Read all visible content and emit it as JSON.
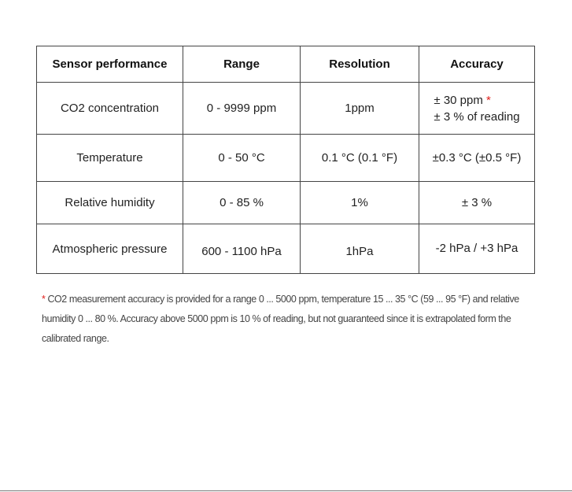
{
  "table": {
    "headers": [
      "Sensor performance",
      "Range",
      "Resolution",
      "Accuracy"
    ],
    "rows": [
      {
        "parameter": "CO2 concentration",
        "range": "0 - 9999 ppm",
        "resolution": "1ppm",
        "accuracy_line1": "± 30 ppm",
        "accuracy_marker": "*",
        "accuracy_line2": "± 3 % of reading"
      },
      {
        "parameter": "Temperature",
        "range": "0 - 50 °C",
        "resolution": "0.1 °C (0.1 °F)",
        "accuracy": "±0.3 °C (±0.5 °F)"
      },
      {
        "parameter": "Relative humidity",
        "range": "0 - 85 %",
        "resolution": "1%",
        "accuracy": "± 3 %"
      },
      {
        "parameter": "Atmospheric pressure",
        "range": "600 - 1100 hPa",
        "resolution": "1hPa",
        "accuracy": "-2 hPa / +3 hPa"
      }
    ]
  },
  "footnote": {
    "marker": "*",
    "text": "CO2 measurement accuracy is provided for a range 0 ... 5000 ppm, temperature 15 ... 35 °C (59 ... 95 °F) and relative humidity 0 ... 80 %. Accuracy above 5000 ppm is 10 % of reading, but not guaranteed since it is extrapolated form the calibrated range."
  },
  "colors": {
    "marker": "#e0201c",
    "border": "#444444",
    "text": "#222222"
  }
}
